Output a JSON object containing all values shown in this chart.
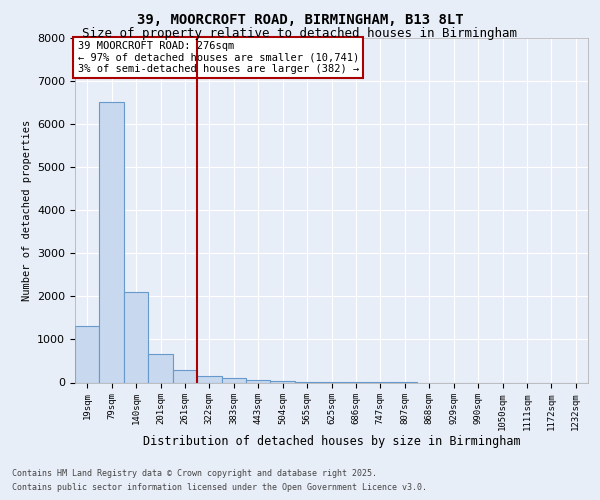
{
  "title_line1": "39, MOORCROFT ROAD, BIRMINGHAM, B13 8LT",
  "title_line2": "Size of property relative to detached houses in Birmingham",
  "xlabel": "Distribution of detached houses by size in Birmingham",
  "ylabel": "Number of detached properties",
  "categories": [
    "19sqm",
    "79sqm",
    "140sqm",
    "201sqm",
    "261sqm",
    "322sqm",
    "383sqm",
    "443sqm",
    "504sqm",
    "565sqm",
    "625sqm",
    "686sqm",
    "747sqm",
    "807sqm",
    "868sqm",
    "929sqm",
    "990sqm",
    "1050sqm",
    "1111sqm",
    "1172sqm",
    "1232sqm"
  ],
  "values": [
    1300,
    6500,
    2100,
    650,
    300,
    160,
    95,
    50,
    30,
    10,
    5,
    2,
    1,
    1,
    0,
    0,
    0,
    0,
    0,
    0,
    0
  ],
  "bar_color": "#c8d8ee",
  "bar_edge_color": "#6699cc",
  "vline_x": 4.5,
  "vline_color": "#aa0000",
  "annotation_text": "39 MOORCROFT ROAD: 276sqm\n← 97% of detached houses are smaller (10,741)\n3% of semi-detached houses are larger (382) →",
  "annotation_box_color": "#ffffff",
  "annotation_box_edge": "#aa0000",
  "ylim": [
    0,
    8000
  ],
  "yticks": [
    0,
    1000,
    2000,
    3000,
    4000,
    5000,
    6000,
    7000,
    8000
  ],
  "footer_line1": "Contains HM Land Registry data © Crown copyright and database right 2025.",
  "footer_line2": "Contains public sector information licensed under the Open Government Licence v3.0.",
  "bg_color": "#e8eef8",
  "plot_bg_color": "#e8eef8",
  "grid_color": "#ffffff",
  "title1_fontsize": 10,
  "title2_fontsize": 9
}
